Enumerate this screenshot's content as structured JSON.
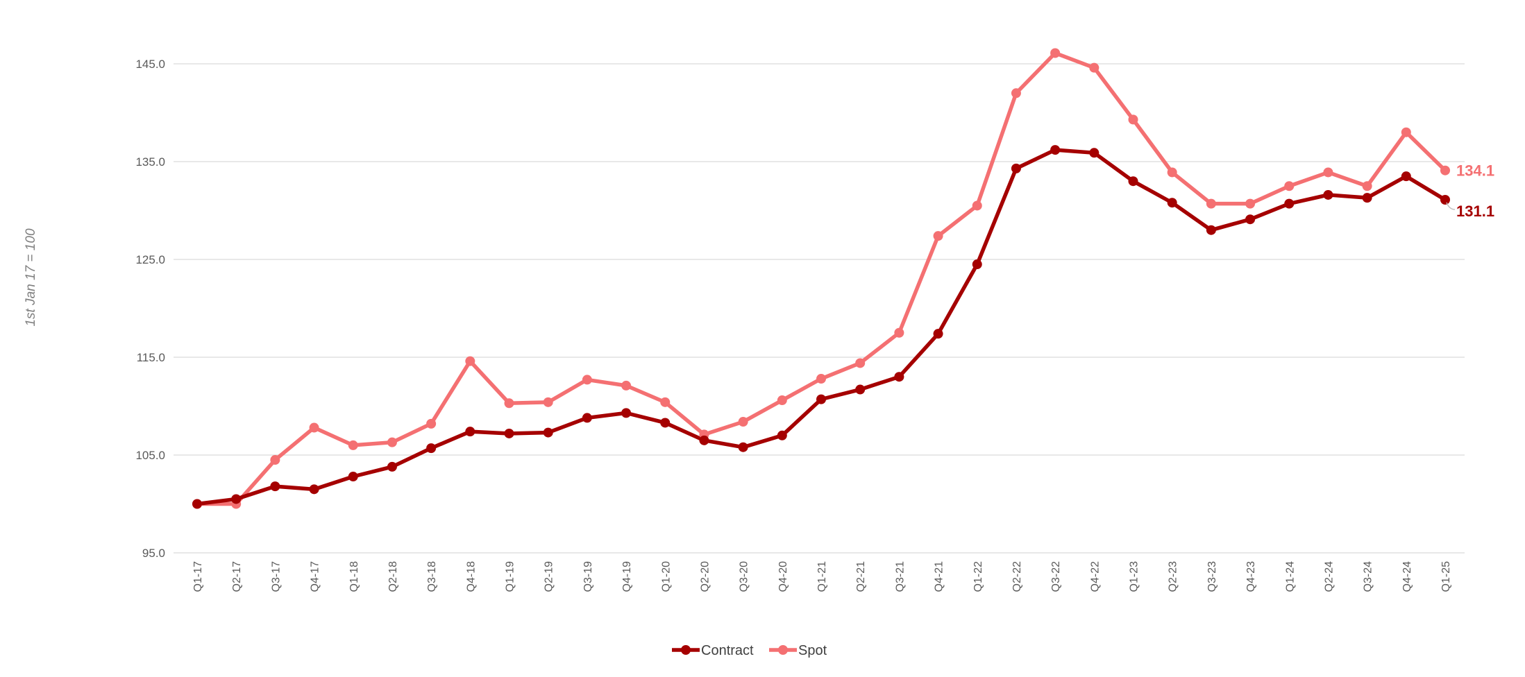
{
  "chart_data": {
    "type": "line",
    "ylabel": "1st Jan 17 = 100",
    "xlabel": "",
    "title": "",
    "ylim": [
      95,
      145
    ],
    "yticks": [
      "95.0",
      "105.0",
      "115.0",
      "125.0",
      "135.0",
      "145.0"
    ],
    "grid": true,
    "legend_position": "bottom",
    "categories": [
      "Q1-17",
      "Q2-17",
      "Q3-17",
      "Q4-17",
      "Q1-18",
      "Q2-18",
      "Q3-18",
      "Q4-18",
      "Q1-19",
      "Q2-19",
      "Q3-19",
      "Q4-19",
      "Q1-20",
      "Q2-20",
      "Q3-20",
      "Q4-20",
      "Q1-21",
      "Q2-21",
      "Q3-21",
      "Q4-21",
      "Q1-22",
      "Q2-22",
      "Q3-22",
      "Q4-22",
      "Q1-23",
      "Q2-23",
      "Q3-23",
      "Q4-23",
      "Q1-24",
      "Q2-24",
      "Q3-24",
      "Q4-24",
      "Q1-25"
    ],
    "series": [
      {
        "name": "Contract",
        "color": "#a50000",
        "end_label": "131.1",
        "values": [
          100.0,
          100.5,
          101.8,
          101.5,
          102.8,
          103.8,
          105.7,
          107.4,
          107.2,
          107.3,
          108.8,
          109.3,
          108.3,
          106.5,
          105.8,
          107.0,
          110.7,
          111.7,
          113.0,
          117.4,
          124.5,
          134.3,
          136.2,
          135.9,
          133.0,
          130.8,
          128.0,
          129.1,
          130.7,
          131.6,
          131.3,
          133.5,
          131.1
        ]
      },
      {
        "name": "Spot",
        "color": "#f47072",
        "end_label": "134.1",
        "values": [
          100.0,
          100.0,
          104.5,
          107.8,
          106.0,
          106.3,
          108.2,
          114.6,
          110.3,
          110.4,
          112.7,
          112.1,
          110.4,
          107.1,
          108.4,
          110.6,
          112.8,
          114.4,
          117.5,
          127.4,
          130.5,
          142.0,
          146.1,
          144.6,
          139.3,
          133.9,
          130.7,
          130.7,
          132.5,
          133.9,
          132.5,
          138.0,
          134.1
        ]
      }
    ]
  }
}
